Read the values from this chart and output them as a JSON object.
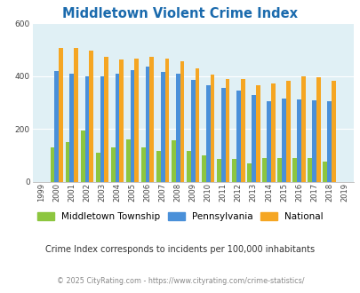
{
  "title": "Middletown Violent Crime Index",
  "years": [
    1999,
    2000,
    2001,
    2002,
    2003,
    2004,
    2005,
    2006,
    2007,
    2008,
    2009,
    2010,
    2011,
    2012,
    2013,
    2014,
    2015,
    2016,
    2017,
    2018,
    2019
  ],
  "middletown": [
    0,
    130,
    150,
    195,
    110,
    130,
    160,
    130,
    115,
    158,
    115,
    100,
    85,
    85,
    68,
    90,
    90,
    88,
    90,
    75,
    0
  ],
  "pennsylvania": [
    0,
    420,
    408,
    400,
    398,
    410,
    422,
    438,
    415,
    408,
    385,
    365,
    355,
    347,
    328,
    305,
    315,
    313,
    310,
    305,
    0
  ],
  "national": [
    0,
    508,
    508,
    497,
    473,
    463,
    468,
    473,
    465,
    455,
    428,
    405,
    390,
    390,
    365,
    374,
    383,
    400,
    396,
    383,
    0
  ],
  "color_middletown": "#8dc63f",
  "color_pennsylvania": "#4a90d9",
  "color_national": "#f5a623",
  "bg_color": "#e0f0f5",
  "ylim": [
    0,
    600
  ],
  "yticks": [
    0,
    200,
    400,
    600
  ],
  "bar_width": 0.28,
  "subtitle": "Crime Index corresponds to incidents per 100,000 inhabitants",
  "footer": "© 2025 CityRating.com - https://www.cityrating.com/crime-statistics/",
  "title_color": "#1a6aad",
  "subtitle_color": "#333333",
  "footer_color": "#888888"
}
